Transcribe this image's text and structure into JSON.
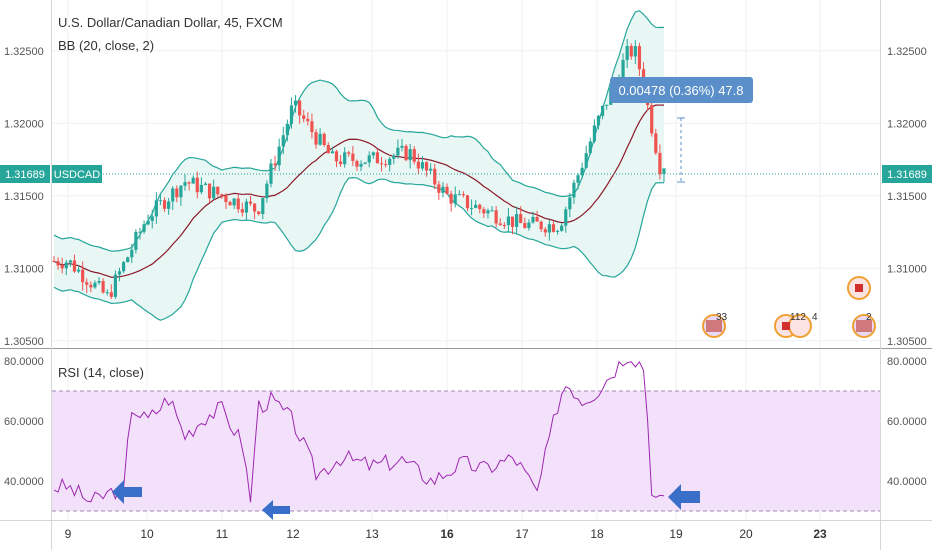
{
  "title": "U.S. Dollar/Canadian Dollar, 45, FXCM",
  "bb_label": "BB (20, close, 2)",
  "rsi_label": "RSI (14, close)",
  "symbol_tag": "USDCAD",
  "last_price": "1.31689",
  "measure_label": "0.00478 (0.36%) 47.8",
  "event_badges": [
    "33",
    "112",
    "4",
    "2"
  ],
  "colors": {
    "up": "#26a69a",
    "down": "#ef5350",
    "band": "#26a69a",
    "basis": "#8b1a2b",
    "band_fill": "#e6f5f3",
    "rsi_line": "#9c27b0",
    "rsi_fill": "#f3e1fb",
    "price_tag": "#26a69a",
    "measure_tag": "#5b8fc9",
    "arrow": "#3a6fc9"
  },
  "chart_data": [
    {
      "type": "line",
      "title": "U.S. Dollar/Canadian Dollar, 45, FXCM",
      "description_note": "",
      "x_tick_labels": [
        "9",
        "10",
        "11",
        "12",
        "13",
        "16",
        "17",
        "18",
        "19",
        "20",
        "23"
      ],
      "y_tick_labels": [
        "1.32500",
        "1.32000",
        "1.31500",
        "1.31000",
        "1.30500"
      ],
      "ylim": [
        1.3045,
        1.3285
      ],
      "grid": true,
      "series": [
        {
          "name": "USDCAD",
          "x_day_position": [
            0.0,
            0.5,
            1.0,
            1.5,
            2.0,
            2.5,
            3.0,
            3.1,
            3.5,
            4.0,
            4.5,
            5.0,
            5.5,
            6.0,
            6.5,
            7.0,
            7.4,
            7.5,
            7.8,
            8.0
          ],
          "close": [
            1.3105,
            1.308,
            1.3135,
            1.316,
            1.315,
            1.314,
            1.3212,
            1.3205,
            1.3175,
            1.3175,
            1.318,
            1.315,
            1.314,
            1.313,
            1.313,
            1.32,
            1.325,
            1.3248,
            1.317,
            1.3169
          ]
        }
      ],
      "last_value": 1.31689
    },
    {
      "type": "line",
      "title": "RSI (14, close)",
      "x_tick_labels": [
        "9",
        "10",
        "11",
        "12",
        "13",
        "16",
        "17",
        "18",
        "19",
        "20",
        "23"
      ],
      "y_tick_labels": [
        "80.0000",
        "60.0000",
        "40.0000"
      ],
      "ylim": [
        27,
        84
      ],
      "bands": [
        30,
        70
      ],
      "series": [
        {
          "name": "RSI",
          "x_day_position": [
            0.0,
            0.3,
            0.6,
            0.7,
            0.8,
            1.0,
            1.3,
            1.5,
            1.8,
            2.0,
            2.3,
            2.4,
            2.5,
            2.7,
            3.0,
            3.3,
            3.6,
            4.0,
            4.4,
            4.8,
            5.2,
            5.5,
            5.9,
            6.2,
            6.5,
            6.6,
            6.8,
            7.0,
            7.4,
            7.6,
            7.7,
            7.9,
            8.0
          ],
          "values": [
            38,
            33,
            37,
            35,
            65,
            60,
            68,
            55,
            62,
            64,
            52,
            32,
            65,
            67,
            60,
            42,
            48,
            45,
            47,
            40,
            46,
            44,
            48,
            36,
            68,
            73,
            67,
            70,
            83,
            78,
            35,
            32,
            33
          ]
        }
      ]
    }
  ]
}
